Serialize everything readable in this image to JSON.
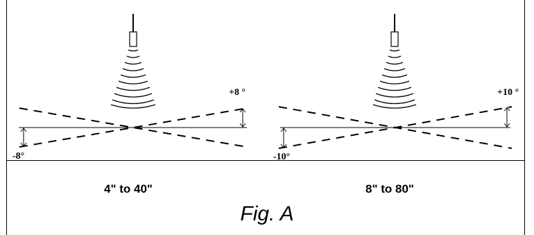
{
  "panels": [
    {
      "upper_angle": "+8 °",
      "lower_angle": "-8°",
      "range_label": "4\" to 40\""
    },
    {
      "upper_angle": "+10 °",
      "lower_angle": "-10°",
      "range_label": "8\" to 80\""
    }
  ],
  "caption": "Fig. A"
}
